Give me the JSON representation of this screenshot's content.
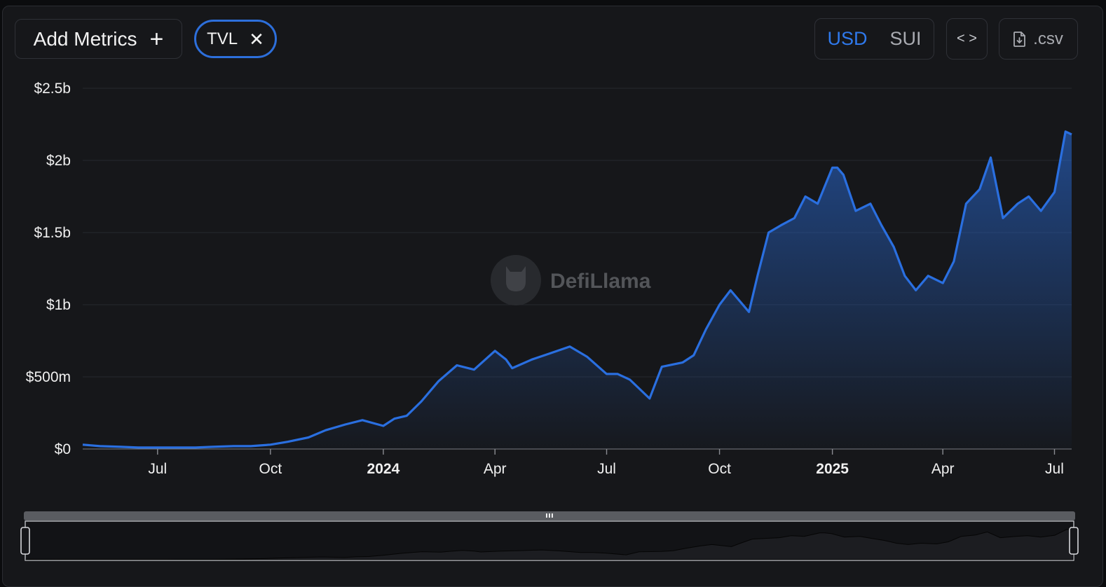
{
  "toolbar": {
    "add_metrics_label": "Add Metrics",
    "add_icon": "plus-icon",
    "metric_chip_label": "TVL",
    "remove_icon": "close-icon",
    "currency_options": [
      "USD",
      "SUI"
    ],
    "currency_selected": "USD",
    "embed_icon": "code-icon",
    "csv_label": ".csv",
    "csv_icon": "file-download-icon"
  },
  "watermark": {
    "text": "DefiLlama",
    "icon": "llama-logo-icon"
  },
  "colors": {
    "line": "#2a6fe0",
    "accent": "#2d6fdb",
    "background": "#16171a"
  },
  "chart_data": {
    "type": "area",
    "series": [
      {
        "name": "TVL",
        "x": [
          "2023-05-01",
          "2023-05-15",
          "2023-06-01",
          "2023-06-15",
          "2023-07-01",
          "2023-07-15",
          "2023-08-01",
          "2023-08-15",
          "2023-09-01",
          "2023-09-15",
          "2023-10-01",
          "2023-10-15",
          "2023-11-01",
          "2023-11-15",
          "2023-12-01",
          "2023-12-15",
          "2024-01-01",
          "2024-01-10",
          "2024-01-20",
          "2024-02-01",
          "2024-02-15",
          "2024-03-01",
          "2024-03-15",
          "2024-04-01",
          "2024-04-10",
          "2024-04-15",
          "2024-05-01",
          "2024-05-15",
          "2024-06-01",
          "2024-06-15",
          "2024-07-01",
          "2024-07-10",
          "2024-07-20",
          "2024-08-05",
          "2024-08-15",
          "2024-09-01",
          "2024-09-10",
          "2024-09-20",
          "2024-10-01",
          "2024-10-10",
          "2024-10-25",
          "2024-11-01",
          "2024-11-10",
          "2024-11-20",
          "2024-12-01",
          "2024-12-10",
          "2024-12-20",
          "2025-01-01",
          "2025-01-05",
          "2025-01-10",
          "2025-01-20",
          "2025-02-01",
          "2025-02-10",
          "2025-02-20",
          "2025-03-01",
          "2025-03-10",
          "2025-03-20",
          "2025-04-01",
          "2025-04-10",
          "2025-04-20",
          "2025-05-01",
          "2025-05-10",
          "2025-05-20",
          "2025-06-01",
          "2025-06-10",
          "2025-06-20",
          "2025-07-01",
          "2025-07-10",
          "2025-07-15"
        ],
        "values": [
          0.03,
          0.02,
          0.015,
          0.01,
          0.01,
          0.01,
          0.01,
          0.015,
          0.02,
          0.02,
          0.03,
          0.05,
          0.08,
          0.13,
          0.17,
          0.2,
          0.16,
          0.21,
          0.23,
          0.33,
          0.47,
          0.58,
          0.55,
          0.68,
          0.62,
          0.56,
          0.62,
          0.66,
          0.71,
          0.64,
          0.52,
          0.52,
          0.48,
          0.35,
          0.57,
          0.6,
          0.65,
          0.83,
          1.0,
          1.1,
          0.95,
          1.2,
          1.5,
          1.55,
          1.6,
          1.75,
          1.7,
          1.95,
          1.95,
          1.9,
          1.65,
          1.7,
          1.55,
          1.4,
          1.2,
          1.1,
          1.2,
          1.15,
          1.3,
          1.7,
          1.8,
          2.02,
          1.6,
          1.7,
          1.75,
          1.65,
          1.78,
          2.2,
          2.18
        ]
      }
    ],
    "title": "",
    "xlabel": "",
    "ylabel": "",
    "x_ticks": [
      {
        "date": "2023-07-01",
        "label": "Jul",
        "year": false
      },
      {
        "date": "2023-10-01",
        "label": "Oct",
        "year": false
      },
      {
        "date": "2024-01-01",
        "label": "2024",
        "year": true
      },
      {
        "date": "2024-04-01",
        "label": "Apr",
        "year": false
      },
      {
        "date": "2024-07-01",
        "label": "Jul",
        "year": false
      },
      {
        "date": "2024-10-01",
        "label": "Oct",
        "year": false
      },
      {
        "date": "2025-01-01",
        "label": "2025",
        "year": true
      },
      {
        "date": "2025-04-01",
        "label": "Apr",
        "year": false
      },
      {
        "date": "2025-07-01",
        "label": "Jul",
        "year": false
      }
    ],
    "y_ticks": [
      {
        "value": 0,
        "label": "$0"
      },
      {
        "value": 0.5,
        "label": "$500m"
      },
      {
        "value": 1,
        "label": "$1b"
      },
      {
        "value": 1.5,
        "label": "$1.5b"
      },
      {
        "value": 2,
        "label": "$2b"
      },
      {
        "value": 2.5,
        "label": "$2.5b"
      }
    ],
    "ylim": [
      0,
      2.5
    ],
    "xlim": [
      "2023-05-01",
      "2025-07-15"
    ],
    "grid": true,
    "legend": false,
    "brush": {
      "range": "full"
    }
  }
}
